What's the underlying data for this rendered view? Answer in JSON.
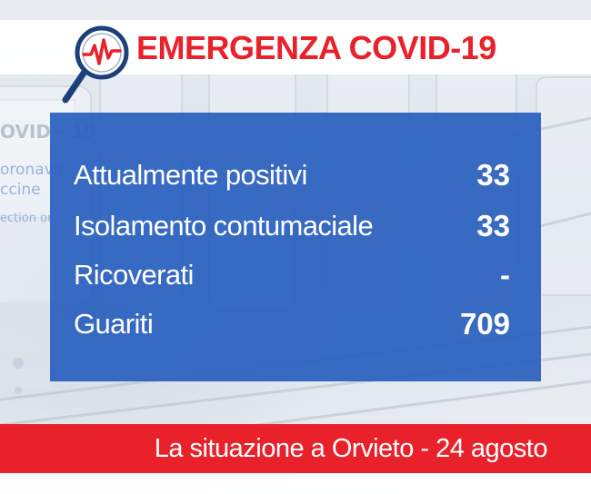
{
  "header": {
    "title": "EMERGENZA COVID-19",
    "title_color": "#e8212b",
    "logo_icon": "magnifier-heartbeat-icon"
  },
  "stats": [
    {
      "label": "Attualmente positivi",
      "value": "33"
    },
    {
      "label": "Isolamento contumaciale",
      "value": "33"
    },
    {
      "label": "Ricoverati",
      "value": "-"
    },
    {
      "label": "Guariti",
      "value": "709"
    }
  ],
  "footer": {
    "text": "La situazione a Orvieto - 24 agosto"
  },
  "colors": {
    "accent_red": "#e8212b",
    "panel_blue": "#2a60be",
    "icon_navy": "#1d3f7a"
  }
}
